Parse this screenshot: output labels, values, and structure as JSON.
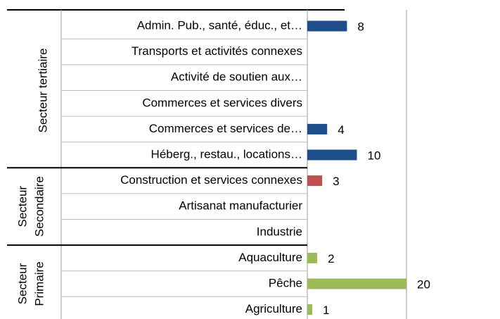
{
  "chart_data": {
    "type": "bar",
    "orientation": "horizontal",
    "xlim": [
      0,
      20
    ],
    "groups": [
      {
        "label": [
          "Secteur tertiaire"
        ],
        "color": "#1f4e8c",
        "categories": [
          "Admin. Pub., santé, éduc., et…",
          "Transports et activités connexes",
          "Activité de soutien aux…",
          "Commerces et services divers",
          "Commerces et services de…",
          "Héberg., restau., locations…"
        ],
        "values": [
          8,
          null,
          null,
          null,
          4,
          10
        ]
      },
      {
        "label": [
          "Secteur",
          "Secondaire"
        ],
        "color": "#c0504d",
        "categories": [
          "Construction et services connexes",
          "Artisanat manufacturier",
          "Industrie"
        ],
        "values": [
          3,
          null,
          null
        ]
      },
      {
        "label": [
          "Secteur",
          "Primaire"
        ],
        "color": "#9bbb59",
        "categories": [
          "Aquaculture",
          "Pêche",
          "Agriculture"
        ],
        "values": [
          2,
          20,
          1
        ]
      }
    ]
  }
}
